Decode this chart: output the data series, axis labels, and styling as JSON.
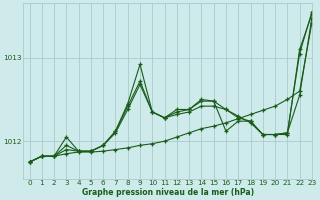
{
  "xlabel": "Graphe pression niveau de la mer (hPa)",
  "ylabel": "",
  "background_color": "#ceeaea",
  "grid_color": "#a8cccc",
  "line_color": "#1a5c1a",
  "xlim": [
    -0.5,
    23
  ],
  "ylim": [
    1011.55,
    1013.65
  ],
  "yticks": [
    1012,
    1013
  ],
  "xticks": [
    0,
    1,
    2,
    3,
    4,
    5,
    6,
    7,
    8,
    9,
    10,
    11,
    12,
    13,
    14,
    15,
    16,
    17,
    18,
    19,
    20,
    21,
    22,
    23
  ],
  "series": [
    [
      1011.75,
      1011.82,
      1011.82,
      1011.85,
      1011.87,
      1011.87,
      1011.88,
      1011.9,
      1011.92,
      1011.95,
      1011.97,
      1012.0,
      1012.05,
      1012.1,
      1012.15,
      1012.18,
      1012.22,
      1012.27,
      1012.32,
      1012.37,
      1012.42,
      1012.5,
      1012.6,
      1013.42
    ],
    [
      1011.75,
      1011.82,
      1011.82,
      1011.9,
      1011.88,
      1011.88,
      1011.95,
      1012.1,
      1012.38,
      1012.68,
      1012.35,
      1012.28,
      1012.32,
      1012.35,
      1012.42,
      1012.42,
      1012.38,
      1012.3,
      1012.22,
      1012.08,
      1012.08,
      1012.1,
      1012.55,
      1013.48
    ],
    [
      1011.75,
      1011.82,
      1011.82,
      1011.95,
      1011.88,
      1011.88,
      1011.95,
      1012.12,
      1012.45,
      1012.92,
      1012.35,
      1012.28,
      1012.35,
      1012.38,
      1012.48,
      1012.48,
      1012.12,
      1012.24,
      1012.24,
      1012.08,
      1012.08,
      1012.08,
      1013.1,
      1013.52
    ],
    [
      1011.75,
      1011.82,
      1011.82,
      1012.05,
      1011.88,
      1011.88,
      1011.95,
      1012.12,
      1012.42,
      1012.72,
      1012.35,
      1012.28,
      1012.38,
      1012.38,
      1012.5,
      1012.48,
      1012.38,
      1012.28,
      1012.24,
      1012.08,
      1012.08,
      1012.1,
      1013.05,
      1013.55
    ]
  ]
}
